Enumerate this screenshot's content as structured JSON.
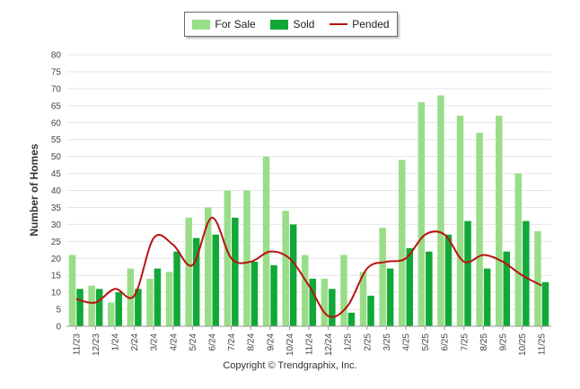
{
  "legend": {
    "for_sale": "For Sale",
    "sold": "Sold",
    "pended": "Pended"
  },
  "colors": {
    "for_sale": "#99dd88",
    "sold": "#11a838",
    "pended": "#bb1111",
    "grid": "#e6e6e6"
  },
  "footer": {
    "copyright": "Copyright © Trendgraphix, Inc."
  },
  "chart_data": {
    "type": "bar",
    "title": "",
    "xlabel": "",
    "ylabel": "Number of Homes",
    "ylim": [
      0,
      80
    ],
    "yticks": [
      0,
      5,
      10,
      15,
      20,
      25,
      30,
      35,
      40,
      45,
      50,
      55,
      60,
      65,
      70,
      75,
      80
    ],
    "categories": [
      "11/23",
      "12/23",
      "1/24",
      "2/24",
      "3/24",
      "4/24",
      "5/24",
      "6/24",
      "7/24",
      "8/24",
      "9/24",
      "10/24",
      "11/24",
      "12/24",
      "1/25",
      "2/25",
      "3/25",
      "4/25",
      "5/25",
      "6/25",
      "7/25",
      "8/25",
      "9/25",
      "10/25",
      "11/25"
    ],
    "series": [
      {
        "name": "For Sale",
        "type": "bar",
        "values": [
          21,
          12,
          7,
          17,
          14,
          16,
          32,
          35,
          40,
          40,
          50,
          34,
          21,
          14,
          21,
          16,
          29,
          49,
          66,
          68,
          62,
          57,
          62,
          45,
          28
        ]
      },
      {
        "name": "Sold",
        "type": "bar",
        "values": [
          11,
          11,
          10,
          11,
          17,
          22,
          26,
          27,
          32,
          19,
          18,
          30,
          14,
          11,
          4,
          9,
          17,
          23,
          22,
          27,
          31,
          17,
          22,
          31,
          13
        ]
      },
      {
        "name": "Pended",
        "type": "line",
        "values": [
          8,
          7,
          11,
          9,
          26,
          24,
          18,
          32,
          20,
          19,
          22,
          20,
          12,
          3,
          6,
          17,
          19,
          20,
          27,
          27,
          19,
          21,
          19,
          15,
          12
        ]
      }
    ]
  }
}
